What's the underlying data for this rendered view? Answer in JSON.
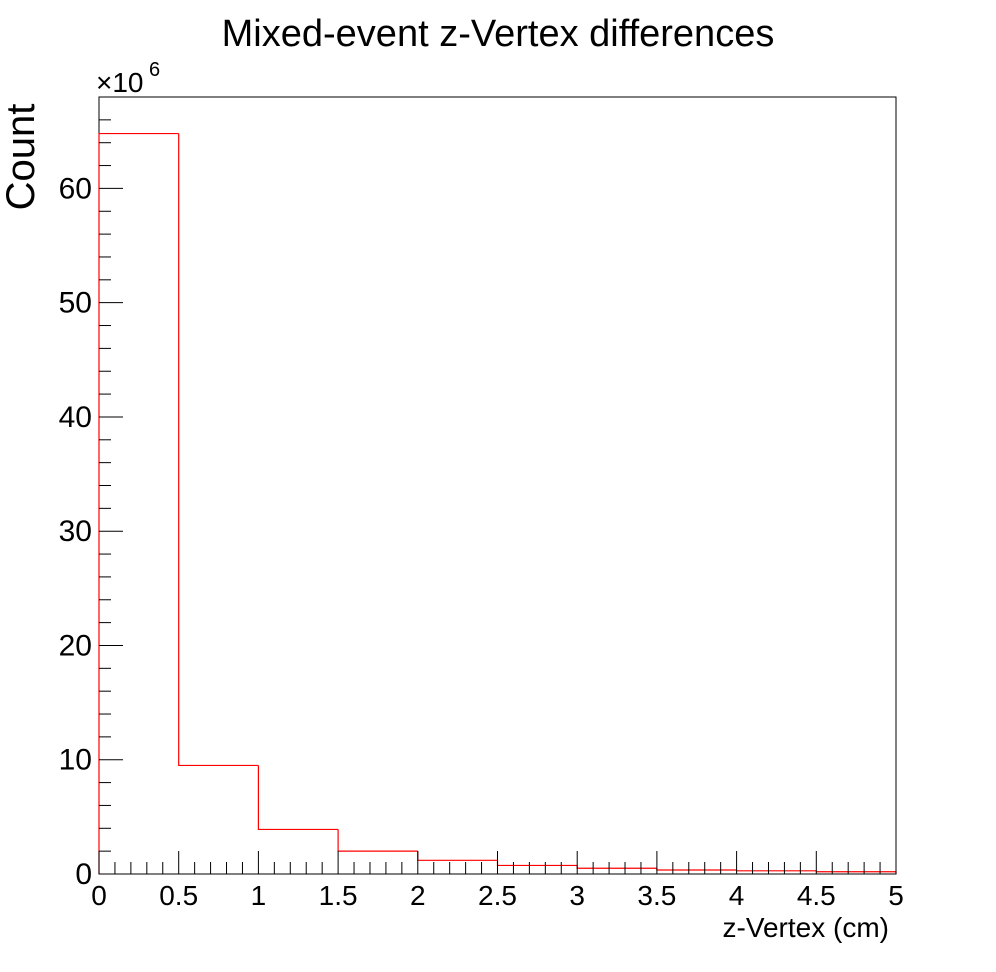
{
  "chart_data": {
    "type": "bar",
    "style": "step-histogram",
    "title": "Mixed-event z-Vertex differences",
    "xlabel": "z-Vertex (cm)",
    "ylabel": "Count",
    "y_multiplier_label": "×10",
    "y_multiplier_exponent": "6",
    "xlim": [
      0,
      5
    ],
    "ylim": [
      0,
      68
    ],
    "bin_edges": [
      0,
      0.5,
      1,
      1.5,
      2,
      2.5,
      3,
      3.5,
      4,
      4.5,
      5
    ],
    "values": [
      64.8,
      9.5,
      3.9,
      2.0,
      1.2,
      0.75,
      0.5,
      0.35,
      0.28,
      0.2
    ],
    "x_ticks": [
      "0",
      "0.5",
      "1",
      "1.5",
      "2",
      "2.5",
      "3",
      "3.5",
      "4",
      "4.5",
      "5"
    ],
    "x_tick_values": [
      0,
      0.5,
      1,
      1.5,
      2,
      2.5,
      3,
      3.5,
      4,
      4.5,
      5
    ],
    "y_ticks": [
      "0",
      "10",
      "20",
      "30",
      "40",
      "50",
      "60"
    ],
    "y_tick_values": [
      0,
      10,
      20,
      30,
      40,
      50,
      60
    ],
    "line_color": "#ff0000",
    "grid": false,
    "legend": "none"
  }
}
